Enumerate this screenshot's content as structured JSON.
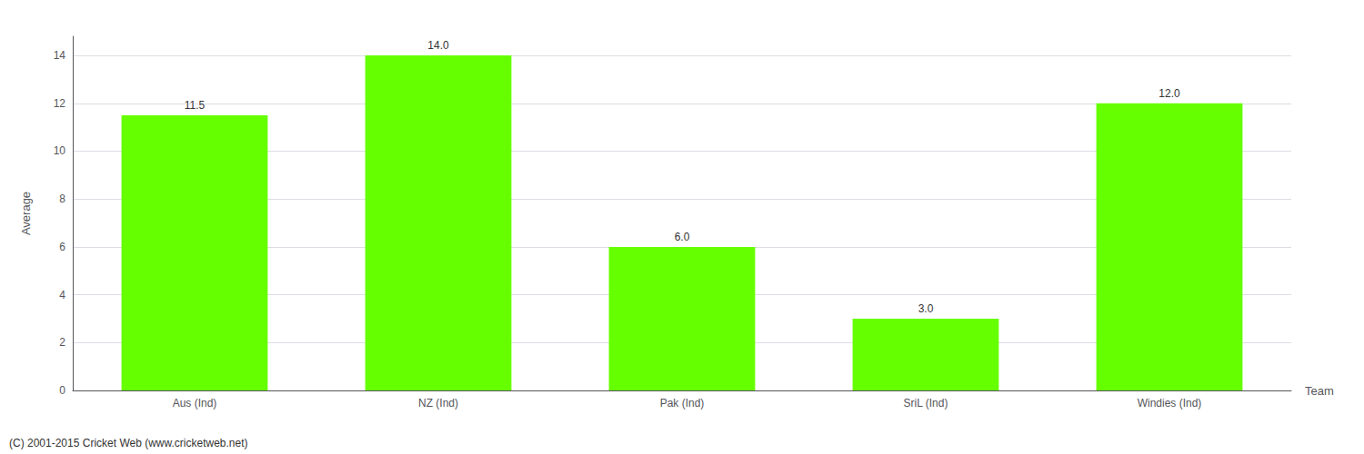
{
  "chart_data": {
    "type": "bar",
    "categories": [
      "Aus (Ind)",
      "NZ (Ind)",
      "Pak (Ind)",
      "SriL (Ind)",
      "Windies (Ind)"
    ],
    "values": [
      11.5,
      14.0,
      6.0,
      3.0,
      12.0
    ],
    "value_labels": [
      "11.5",
      "14.0",
      "6.0",
      "3.0",
      "12.0"
    ],
    "data_labels": true,
    "color": "#66ff00",
    "xlabel": "Team",
    "ylabel": "Average",
    "ylim": [
      0,
      14.8
    ],
    "yticks": [
      0,
      2,
      4,
      6,
      8,
      10,
      12,
      14
    ],
    "grid": true,
    "annotations": [
      "(C) 2001-2015 Cricket Web (www.cricketweb.net)"
    ]
  }
}
